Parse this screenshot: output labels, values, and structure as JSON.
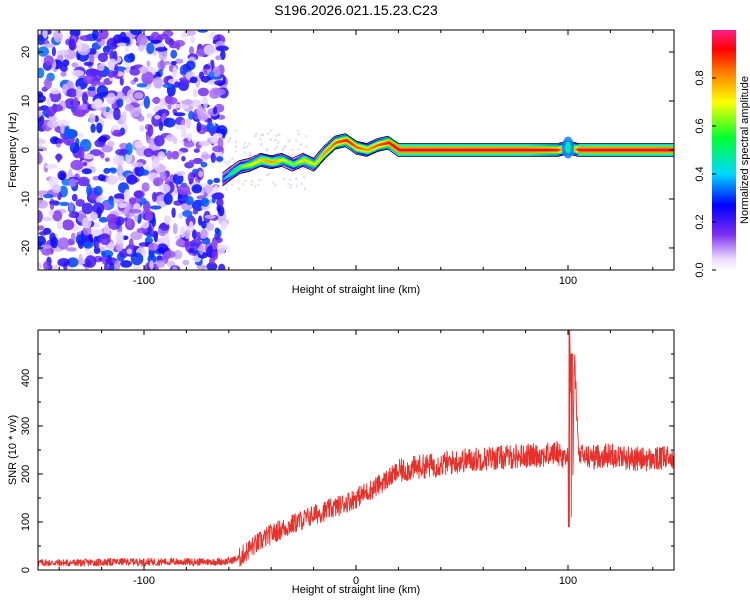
{
  "title": "S196.2026.021.15.23.C23",
  "chart_data": [
    {
      "type": "heatmap",
      "xlabel": "Height of straight line (km)",
      "ylabel": "Frequency (Hz)",
      "xlim": [
        -150,
        150
      ],
      "ylim": [
        -24.5,
        24.5
      ],
      "x_ticks": [
        -100,
        0,
        100
      ],
      "x_tick_labels": [
        "-100",
        "",
        "100"
      ],
      "y_ticks": [
        -20,
        -10,
        0,
        10,
        20
      ],
      "y_tick_labels": [
        "-20",
        "-10",
        "0",
        "10",
        "20"
      ],
      "grid": false,
      "colorbar": {
        "label": "Normalized spectral amplitude",
        "range": [
          0,
          1
        ],
        "ticks": [
          0,
          0.2,
          0.4,
          0.6,
          0.8
        ],
        "tick_labels": [
          "0.0",
          "0.2",
          "0.4",
          "0.6",
          "0.8"
        ],
        "colormap": "rainbow (white-violet-blue-cyan-green-yellow-red-magenta)"
      },
      "noise_region": {
        "x_range": [
          -150,
          -62
        ],
        "amplitude_range": [
          0.0,
          0.3
        ]
      },
      "ridge": {
        "x": [
          -63,
          -60,
          -55,
          -50,
          -45,
          -40,
          -35,
          -30,
          -25,
          -20,
          -15,
          -10,
          -5,
          0,
          5,
          10,
          15,
          20,
          40,
          60,
          80,
          95,
          100,
          105,
          150
        ],
        "frequency": [
          -6,
          -5,
          -3.5,
          -3,
          -2,
          -2.5,
          -2,
          -3,
          -2,
          -3,
          -0.5,
          1.5,
          2,
          0.5,
          0,
          1,
          1.5,
          0,
          0,
          0,
          0,
          0,
          0.5,
          0,
          0
        ],
        "amplitude": [
          0.35,
          0.5,
          0.6,
          0.7,
          0.75,
          0.8,
          0.7,
          0.6,
          0.75,
          0.7,
          0.8,
          0.85,
          0.9,
          0.85,
          0.8,
          0.85,
          0.9,
          0.95,
          0.95,
          0.95,
          0.95,
          0.9,
          0.5,
          0.95,
          0.95
        ]
      }
    },
    {
      "type": "line",
      "xlabel": "Height of straight line (km)",
      "ylabel": "SNR (10 * v/v)",
      "xlim": [
        -150,
        150
      ],
      "ylim": [
        0,
        500
      ],
      "x_ticks": [
        -100,
        0,
        100
      ],
      "x_tick_labels": [
        "-100",
        "0",
        "100"
      ],
      "y_ticks": [
        0,
        100,
        200,
        300,
        400
      ],
      "y_tick_labels": [
        "0",
        "100",
        "200",
        "300",
        "400"
      ],
      "grid": false,
      "series": [
        {
          "color": "#e8302a",
          "x": [
            -150,
            -130,
            -110,
            -90,
            -70,
            -60,
            -55,
            -50,
            -45,
            -40,
            -30,
            -20,
            -10,
            0,
            10,
            15,
            20,
            25,
            30,
            40,
            50,
            60,
            70,
            80,
            90,
            95,
            100,
            101,
            102,
            103,
            105,
            110,
            120,
            130,
            140,
            150
          ],
          "values": [
            15,
            15,
            17,
            17,
            17,
            18,
            25,
            45,
            60,
            75,
            95,
            115,
            130,
            150,
            175,
            190,
            205,
            210,
            215,
            220,
            228,
            232,
            235,
            238,
            240,
            245,
            230,
            480,
            95,
            450,
            240,
            235,
            240,
            232,
            230,
            235
          ],
          "spikes": [
            {
              "x": 100.5,
              "max": 500,
              "min": 90
            },
            {
              "x": 101.8,
              "max": 450,
              "min": 110
            }
          ]
        }
      ]
    }
  ]
}
